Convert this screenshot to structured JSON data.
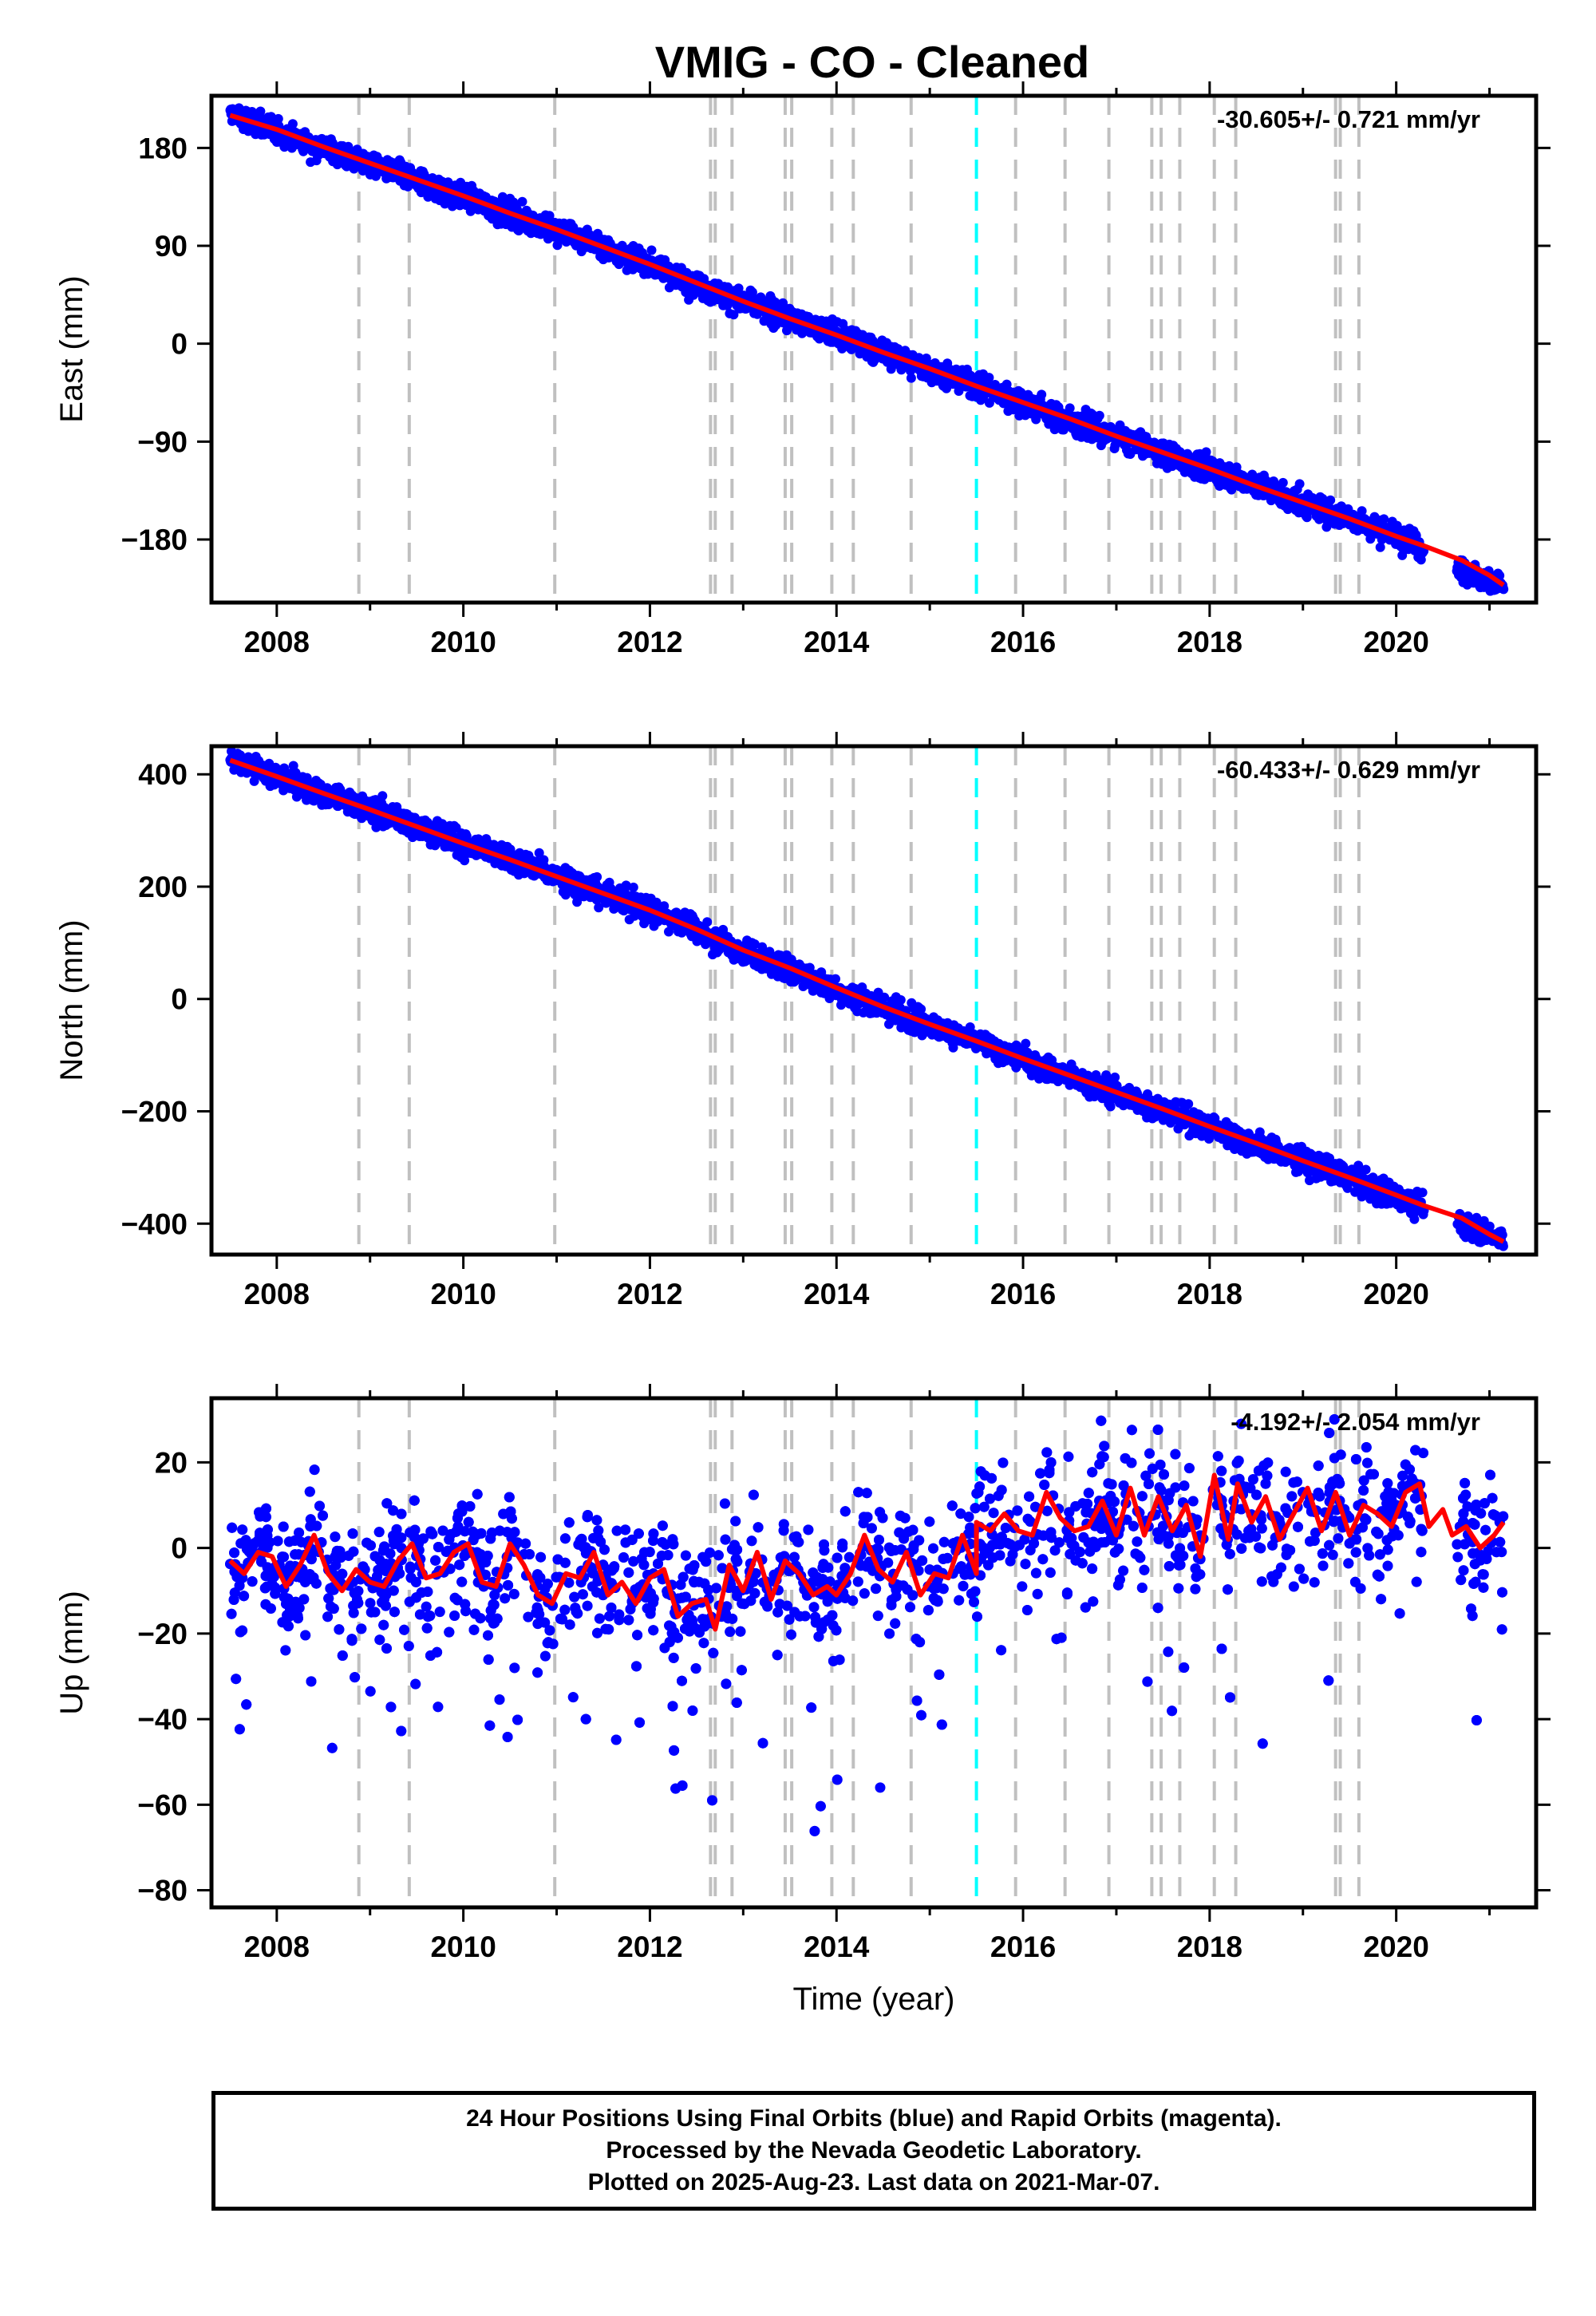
{
  "title": "VMIG  - CO - Cleaned",
  "colors": {
    "data_points": "#0000ff",
    "model_fit": "#ff0000",
    "event_lines": "#c0c0c0",
    "equipment_change_line": "#00ffff",
    "frame": "#000000"
  },
  "footer": {
    "line1": "24 Hour Positions Using Final Orbits (blue) and Rapid Orbits (magenta).",
    "line2": "Processed by the Nevada Geodetic Laboratory.",
    "line3": "Plotted on 2025-Aug-23. Last data on 2021-Mar-07."
  },
  "chart_data": [
    {
      "type": "scatter",
      "title": "VMIG  - CO - Cleaned",
      "ylabel": "East (mm)",
      "xlabel": "",
      "rate_label": "-30.605+/- 0.721 mm/yr",
      "xlim": [
        2007.3,
        2021.5
      ],
      "ylim": [
        -238,
        228
      ],
      "x_ticks": [
        2008,
        2010,
        2012,
        2014,
        2016,
        2018,
        2020
      ],
      "x_tick_labels": [
        "2008",
        "2010",
        "2012",
        "2014",
        "2016",
        "2018",
        "2020"
      ],
      "y_ticks": [
        180,
        90,
        0,
        -90,
        -180
      ],
      "y_tick_labels": [
        "180",
        "90",
        "0",
        "−90",
        "−180"
      ],
      "series": [
        {
          "kind": "points",
          "x": [
            2007.5,
            2008.0,
            2008.5,
            2009.0,
            2009.5,
            2010.0,
            2010.5,
            2011.0,
            2011.5,
            2012.0,
            2012.5,
            2013.0,
            2013.5,
            2014.0,
            2014.5,
            2015.0,
            2015.5,
            2016.0,
            2016.5,
            2017.0,
            2017.5,
            2018.0,
            2018.5,
            2019.0,
            2019.5,
            2020.0,
            2020.3,
            2020.7,
            2021.0,
            2021.15
          ],
          "y": [
            211,
            195,
            180,
            166,
            150,
            135,
            120,
            104,
            90,
            74,
            55,
            38,
            24,
            8,
            -8,
            -23,
            -38,
            -53,
            -70,
            -85,
            -100,
            -115,
            -130,
            -146,
            -161,
            -176,
            -186,
            -210,
            -218,
            -223
          ]
        },
        {
          "kind": "line",
          "x": [
            2007.5,
            2008.0,
            2008.5,
            2009.0,
            2009.5,
            2010.0,
            2010.5,
            2011.0,
            2011.5,
            2012.0,
            2012.5,
            2013.0,
            2013.5,
            2014.0,
            2014.5,
            2015.0,
            2015.5,
            2016.0,
            2016.5,
            2017.0,
            2017.5,
            2018.0,
            2018.5,
            2019.0,
            2019.5,
            2020.0,
            2020.3,
            2020.7,
            2021.0,
            2021.15
          ],
          "y": [
            210,
            197,
            181,
            166,
            151,
            136,
            120,
            105,
            89,
            73,
            56,
            39,
            23,
            8,
            -8,
            -23,
            -39,
            -54,
            -69,
            -85,
            -100,
            -115,
            -131,
            -146,
            -161,
            -177,
            -186,
            -199,
            -213,
            -222
          ]
        }
      ],
      "vlines_gray": [
        2008.88,
        2009.42,
        2010.98,
        2012.65,
        2012.7,
        2012.88,
        2013.45,
        2013.52,
        2013.95,
        2014.18,
        2014.8,
        2015.92,
        2016.45,
        2016.92,
        2017.38,
        2017.48,
        2017.68,
        2018.05,
        2018.28,
        2019.35,
        2019.4,
        2019.6
      ],
      "vline_cyan": 2015.5
    },
    {
      "type": "scatter",
      "title": "",
      "ylabel": "North (mm)",
      "xlabel": "",
      "rate_label": "-60.433+/- 0.629 mm/yr",
      "xlim": [
        2007.3,
        2021.5
      ],
      "ylim": [
        -455,
        450
      ],
      "x_ticks": [
        2008,
        2010,
        2012,
        2014,
        2016,
        2018,
        2020
      ],
      "x_tick_labels": [
        "2008",
        "2010",
        "2012",
        "2014",
        "2016",
        "2018",
        "2020"
      ],
      "y_ticks": [
        400,
        200,
        0,
        -200,
        -400
      ],
      "y_tick_labels": [
        "400",
        "200",
        "0",
        "−200",
        "−400"
      ],
      "series": [
        {
          "kind": "points",
          "x": [
            2007.5,
            2008.0,
            2008.5,
            2009.0,
            2009.5,
            2010.0,
            2010.5,
            2011.0,
            2011.5,
            2012.0,
            2012.5,
            2013.0,
            2013.5,
            2014.0,
            2014.5,
            2015.0,
            2015.5,
            2016.0,
            2016.5,
            2017.0,
            2017.5,
            2018.0,
            2018.5,
            2019.0,
            2019.5,
            2020.0,
            2020.3,
            2020.7,
            2021.0,
            2021.15
          ],
          "y": [
            425,
            396,
            366,
            336,
            308,
            276,
            252,
            218,
            186,
            160,
            122,
            84,
            52,
            18,
            -16,
            -46,
            -76,
            -107,
            -138,
            -168,
            -198,
            -228,
            -259,
            -290,
            -320,
            -350,
            -370,
            -398,
            -420,
            -430
          ]
        },
        {
          "kind": "line",
          "x": [
            2007.5,
            2008.0,
            2008.5,
            2009.0,
            2009.5,
            2010.0,
            2010.5,
            2011.0,
            2011.5,
            2012.0,
            2012.5,
            2013.0,
            2013.5,
            2014.0,
            2014.5,
            2015.0,
            2015.5,
            2016.0,
            2016.5,
            2017.0,
            2017.5,
            2018.0,
            2018.5,
            2019.0,
            2019.5,
            2020.0,
            2020.3,
            2020.7,
            2021.0,
            2021.15
          ],
          "y": [
            425,
            396,
            366,
            337,
            307,
            277,
            248,
            218,
            188,
            158,
            124,
            87,
            55,
            20,
            -14,
            -45,
            -75,
            -106,
            -136,
            -166,
            -196,
            -227,
            -257,
            -288,
            -318,
            -349,
            -368,
            -390,
            -419,
            -432
          ]
        }
      ],
      "vlines_gray": [
        2008.88,
        2009.42,
        2010.98,
        2012.65,
        2012.7,
        2012.88,
        2013.45,
        2013.52,
        2013.95,
        2014.18,
        2014.8,
        2015.92,
        2016.45,
        2016.92,
        2017.38,
        2017.48,
        2017.68,
        2018.05,
        2018.28,
        2019.35,
        2019.4,
        2019.6
      ],
      "vline_cyan": 2015.5
    },
    {
      "type": "scatter",
      "title": "",
      "ylabel": "Up (mm)",
      "xlabel": "Time (year)",
      "rate_label": "-4.192+/- 2.054 mm/yr",
      "xlim": [
        2007.3,
        2021.5
      ],
      "ylim": [
        -84,
        35
      ],
      "x_ticks": [
        2008,
        2010,
        2012,
        2014,
        2016,
        2018,
        2020
      ],
      "x_tick_labels": [
        "2008",
        "2010",
        "2012",
        "2014",
        "2016",
        "2018",
        "2020"
      ],
      "y_ticks": [
        20,
        0,
        -20,
        -40,
        -60,
        -80
      ],
      "y_tick_labels": [
        "20",
        "0",
        "−20",
        "−40",
        "−60",
        "−80"
      ],
      "series": [
        {
          "kind": "line",
          "x": [
            2007.5,
            2007.65,
            2007.8,
            2007.95,
            2008.1,
            2008.25,
            2008.4,
            2008.55,
            2008.7,
            2008.85,
            2009.0,
            2009.15,
            2009.3,
            2009.45,
            2009.6,
            2009.75,
            2009.9,
            2010.05,
            2010.2,
            2010.35,
            2010.5,
            2010.65,
            2010.8,
            2010.95,
            2011.1,
            2011.25,
            2011.4,
            2011.55,
            2011.7,
            2011.85,
            2012.0,
            2012.15,
            2012.3,
            2012.45,
            2012.6,
            2012.7,
            2012.85,
            2013.0,
            2013.15,
            2013.3,
            2013.45,
            2013.6,
            2013.75,
            2013.9,
            2014.0,
            2014.15,
            2014.3,
            2014.45,
            2014.6,
            2014.75,
            2014.9,
            2015.05,
            2015.2,
            2015.35,
            2015.5,
            2015.5,
            2015.65,
            2015.8,
            2015.95,
            2016.1,
            2016.25,
            2016.4,
            2016.55,
            2016.7,
            2016.85,
            2017.0,
            2017.15,
            2017.3,
            2017.45,
            2017.6,
            2017.75,
            2017.9,
            2018.05,
            2018.2,
            2018.3,
            2018.45,
            2018.6,
            2018.75,
            2018.9,
            2019.05,
            2019.2,
            2019.35,
            2019.5,
            2019.65,
            2019.8,
            2019.95,
            2020.1,
            2020.25,
            2020.35,
            2020.5,
            2020.6,
            2020.75,
            2020.9,
            2021.05,
            2021.15
          ],
          "y": [
            -3,
            -6,
            -1,
            -2,
            -9,
            -4,
            3,
            -6,
            -10,
            -5,
            -8,
            -9,
            -3,
            1,
            -7,
            -6,
            -1,
            1,
            -8,
            -9,
            1,
            -4,
            -11,
            -13,
            -6,
            -7,
            -1,
            -11,
            -8,
            -13,
            -7,
            -5,
            -16,
            -13,
            -12,
            -19,
            -4,
            -10,
            -1,
            -12,
            -3,
            -6,
            -11,
            -9,
            -11,
            -6,
            3,
            -5,
            -8,
            -1,
            -11,
            -6,
            -7,
            3,
            -6,
            6,
            4,
            8,
            4,
            3,
            13,
            7,
            4,
            5,
            11,
            3,
            14,
            3,
            12,
            4,
            10,
            -2,
            17,
            2,
            15,
            6,
            12,
            2,
            8,
            14,
            4,
            13,
            3,
            10,
            8,
            5,
            13,
            15,
            5,
            9,
            3,
            5,
            0,
            3,
            6
          ]
        }
      ],
      "vlines_gray": [
        2008.88,
        2009.42,
        2010.98,
        2012.65,
        2012.7,
        2012.88,
        2013.45,
        2013.52,
        2013.95,
        2014.18,
        2014.8,
        2015.92,
        2016.45,
        2016.92,
        2017.38,
        2017.48,
        2017.68,
        2018.05,
        2018.28,
        2019.35,
        2019.4,
        2019.6
      ],
      "vline_cyan": 2015.5
    }
  ]
}
